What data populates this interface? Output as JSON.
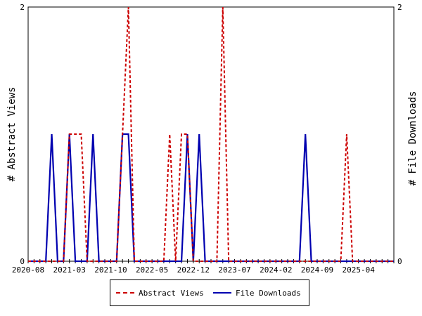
{
  "chart_data": {
    "type": "line",
    "xlabel": "",
    "ylabel_left": "# Abstract Views",
    "ylabel_right": "# File Downloads",
    "ylim": [
      0,
      2
    ],
    "y_ticks_left": [
      "0",
      "2"
    ],
    "y_ticks_right": [
      "0",
      "2"
    ],
    "x_tick_labels": [
      "2020-08",
      "2021-03",
      "2021-10",
      "2022-05",
      "2022-12",
      "2023-07",
      "2024-02",
      "2024-09",
      "2025-04"
    ],
    "x_months": [
      "2020-08",
      "2020-09",
      "2020-10",
      "2020-11",
      "2020-12",
      "2021-01",
      "2021-02",
      "2021-03",
      "2021-04",
      "2021-05",
      "2021-06",
      "2021-07",
      "2021-08",
      "2021-09",
      "2021-10",
      "2021-11",
      "2021-12",
      "2022-01",
      "2022-02",
      "2022-03",
      "2022-04",
      "2022-05",
      "2022-06",
      "2022-07",
      "2022-08",
      "2022-09",
      "2022-10",
      "2022-11",
      "2022-12",
      "2023-01",
      "2023-02",
      "2023-03",
      "2023-04",
      "2023-05",
      "2023-06",
      "2023-07",
      "2023-08",
      "2023-09",
      "2023-10",
      "2023-11",
      "2023-12",
      "2024-01",
      "2024-02",
      "2024-03",
      "2024-04",
      "2024-05",
      "2024-06",
      "2024-07",
      "2024-08",
      "2024-09",
      "2024-10",
      "2024-11",
      "2024-12",
      "2025-01",
      "2025-02",
      "2025-03",
      "2025-04",
      "2025-05",
      "2025-06",
      "2025-07",
      "2025-08",
      "2025-09",
      "2025-10"
    ],
    "series": [
      {
        "name": "Abstract Views",
        "color": "#cc0000",
        "dash": true,
        "axis": "left",
        "values": [
          0,
          0,
          0,
          0,
          0,
          0,
          0,
          1,
          1,
          1,
          0,
          0,
          0,
          0,
          0,
          0,
          1,
          2,
          0,
          0,
          0,
          0,
          0,
          0,
          1,
          0,
          1,
          1,
          0,
          0,
          0,
          0,
          0,
          2,
          0,
          0,
          0,
          0,
          0,
          0,
          0,
          0,
          0,
          0,
          0,
          0,
          0,
          0,
          0,
          0,
          0,
          0,
          0,
          0,
          1,
          0,
          0,
          0,
          0,
          0,
          0,
          0,
          0
        ]
      },
      {
        "name": "File Downloads",
        "color": "#0000b0",
        "dash": false,
        "axis": "right",
        "values": [
          0,
          0,
          0,
          0,
          1,
          0,
          0,
          1,
          0,
          0,
          0,
          1,
          0,
          0,
          0,
          0,
          1,
          1,
          0,
          0,
          0,
          0,
          0,
          0,
          0,
          0,
          0,
          1,
          0,
          1,
          0,
          0,
          0,
          0,
          0,
          0,
          0,
          0,
          0,
          0,
          0,
          0,
          0,
          0,
          0,
          0,
          0,
          1,
          0,
          0,
          0,
          0,
          0,
          0,
          0,
          0,
          0,
          0,
          0,
          0,
          0,
          0,
          0
        ]
      }
    ],
    "legend": {
      "position": "bottom",
      "entries": [
        "Abstract Views",
        "File Downloads"
      ]
    },
    "grid": false
  }
}
